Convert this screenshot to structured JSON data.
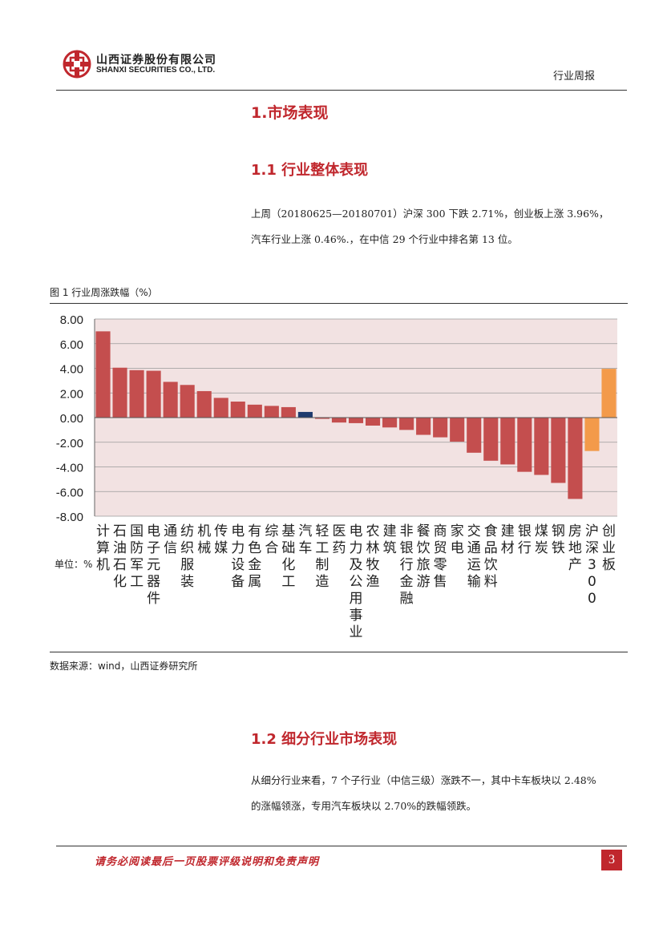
{
  "header": {
    "company_cn": "山西证券股份有限公司",
    "company_en": "SHANXI SECURITIES CO., LTD.",
    "report_type": "行业周报"
  },
  "section1": {
    "title": "1.市场表现"
  },
  "section1_1": {
    "title": "1.1 行业整体表现",
    "paragraph_line1": "上周（20180625—20180701）沪深 300 下跌 2.71%，创业板上涨 3.96%，",
    "paragraph_line2": "汽车行业上涨 0.46%.，在中信 29 个行业中排名第 13 位。"
  },
  "figure": {
    "title": "图 1 行业周涨跌幅（%）",
    "unit_label": "单位：%",
    "source": "数据来源：wind，山西证券研究所"
  },
  "chart_data": {
    "type": "bar",
    "categories": [
      "计算机",
      "石油石化",
      "国防军工",
      "电子元器件",
      "通信",
      "纺织服装",
      "机械",
      "传媒",
      "电力设备",
      "有色金属",
      "综合",
      "基础化工",
      "汽车",
      "轻工制造",
      "医药",
      "电力及公用事业",
      "农林牧渔",
      "建筑",
      "非银行金融",
      "餐饮旅游",
      "商贸零售",
      "家电",
      "交通运输",
      "食品饮料",
      "建材",
      "银行",
      "煤炭",
      "钢铁",
      "房地产",
      "沪深300",
      "创业板"
    ],
    "values": [
      7.0,
      4.05,
      3.85,
      3.8,
      2.9,
      2.65,
      2.15,
      1.6,
      1.3,
      1.05,
      0.95,
      0.85,
      0.46,
      -0.1,
      -0.4,
      -0.45,
      -0.65,
      -0.8,
      -1.0,
      -1.4,
      -1.6,
      -1.95,
      -2.85,
      -3.5,
      -3.8,
      -4.4,
      -4.65,
      -5.3,
      -6.6,
      -2.71,
      3.96
    ],
    "highlight": {
      "汽车": "#1f3a6e",
      "机械": "#c44e4e",
      "沪深300": "#f39a4a",
      "创业板": "#f39a4a"
    },
    "bar_color": "#c44e4e",
    "plot_background": "#f2e2e2",
    "ylim": [
      -8,
      8
    ],
    "yticks": [
      "8.00",
      "6.00",
      "4.00",
      "2.00",
      "0.00",
      "-2.00",
      "-4.00",
      "-6.00",
      "-8.00"
    ],
    "grid": true,
    "title": "",
    "xlabel": "",
    "ylabel": ""
  },
  "section1_2": {
    "title": "1.2 细分行业市场表现",
    "paragraph_line1": "从细分行业来看，7 个子行业（中信三级）涨跌不一，其中卡车板块以 2.48%",
    "paragraph_line2": "的涨幅领涨，专用汽车板块以 2.70%的跌幅领跌。"
  },
  "footer": {
    "disclaimer": "请务必阅读最后一页股票评级说明和免责声明",
    "page_number": "3"
  },
  "colors": {
    "accent": "#c0272d"
  }
}
